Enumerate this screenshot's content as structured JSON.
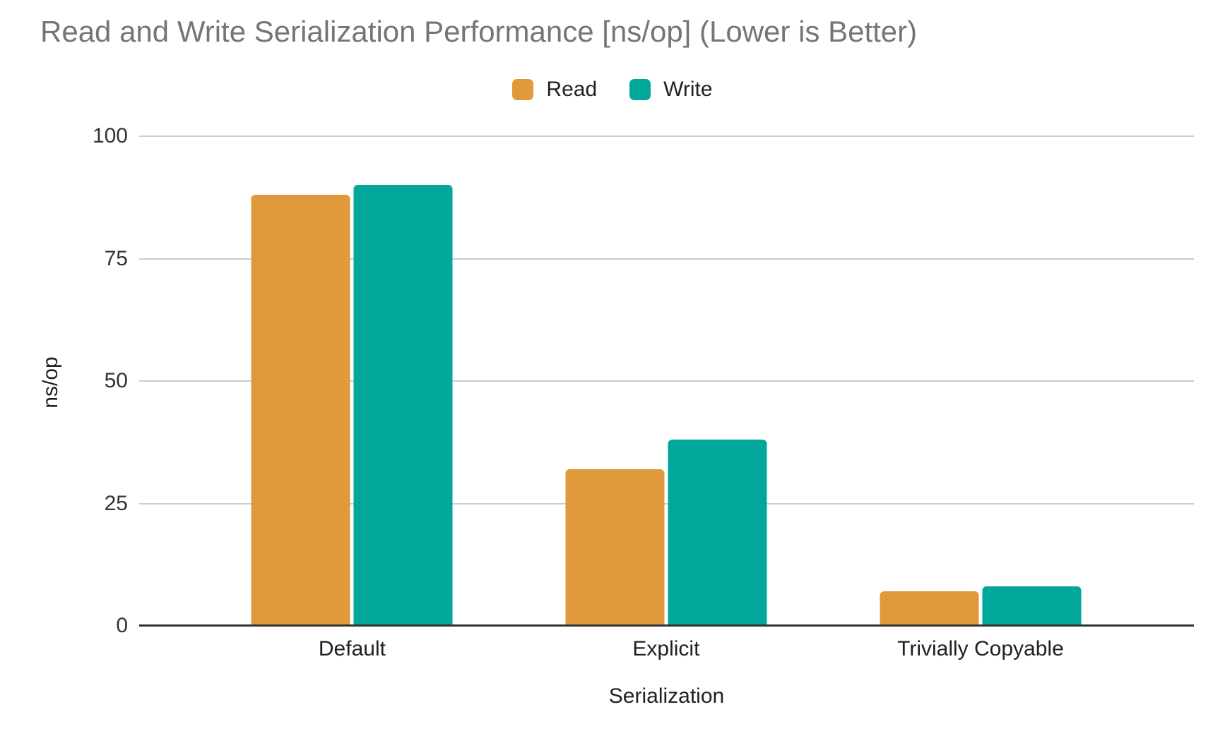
{
  "title": "Read and Write Serialization Performance [ns/op] (Lower is Better)",
  "chart_data": {
    "type": "bar",
    "categories": [
      "Default",
      "Explicit",
      "Trivially Copyable"
    ],
    "series": [
      {
        "name": "Read",
        "color": "#E0993B",
        "values": [
          88,
          32,
          7
        ]
      },
      {
        "name": "Write",
        "color": "#02A79C",
        "values": [
          90,
          38,
          8
        ]
      }
    ],
    "title": "Read and Write Serialization Performance [ns/op] (Lower is Better)",
    "xlabel": "Serialization",
    "ylabel": "ns/op",
    "ylim": [
      0,
      100
    ],
    "yticks": [
      0,
      25,
      50,
      75,
      100
    ],
    "grid": true,
    "legend_position": "top-center"
  },
  "colors": {
    "title_text": "#757575",
    "axis_text": "#212121",
    "tick_text": "#333333",
    "gridline": "#cccccc",
    "axis_line": "#333333",
    "background": "#ffffff",
    "read_series": "#E0993B",
    "write_series": "#02A79C"
  }
}
